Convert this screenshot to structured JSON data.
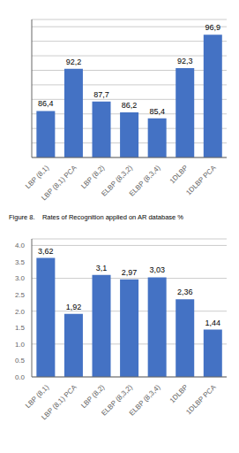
{
  "chart_data": [
    {
      "type": "bar",
      "categories": [
        "LBP (8,1)",
        "LBP (8,1) PCA",
        "LBP (8,2)",
        "ELBP (8,3,2)",
        "ELBP (8,3,4)",
        "1DLBP",
        "1DLBP PCA"
      ],
      "values": [
        86.4,
        92.2,
        87.7,
        86.2,
        85.4,
        92.3,
        96.9
      ],
      "value_labels": [
        "86,4",
        "92,2",
        "87,7",
        "86,2",
        "85,4",
        "92,3",
        "96,9"
      ],
      "data_labels": true,
      "color": "#4472C4",
      "ylim": [
        80,
        99
      ],
      "yticks": [
        82,
        84,
        86,
        88,
        90,
        92,
        94,
        96,
        98
      ],
      "grid": true,
      "tick_labels": "x",
      "annotations": [
        "Figure 8.    Rates of Recognition applied on AR database %"
      ]
    },
    {
      "type": "bar",
      "categories": [
        "LBP (8,1)",
        "LBP (8,1) PCA",
        "LBP (8,2)",
        "ELBP (8,3,2)",
        "ELBP (8,3,4)",
        "1DLBP",
        "1DLBP PCA"
      ],
      "values": [
        3.62,
        1.92,
        3.1,
        2.97,
        3.03,
        2.36,
        1.44
      ],
      "value_labels": [
        "3,62",
        "1,92",
        "3,1",
        "2,97",
        "3,03",
        "2,36",
        "1,44"
      ],
      "data_labels": true,
      "color": "#4472C4",
      "ylim": [
        0,
        4.2
      ],
      "yticks": [
        {
          "value": 0,
          "label": "0.0"
        },
        0.5,
        {
          "value": 1,
          "label": "1.0"
        },
        1.5,
        {
          "value": 2,
          "label": "2.0"
        },
        2.5,
        {
          "value": 3,
          "label": "3.0"
        },
        3.5,
        {
          "value": 4,
          "label": "4.0"
        }
      ],
      "grid": true
    }
  ]
}
